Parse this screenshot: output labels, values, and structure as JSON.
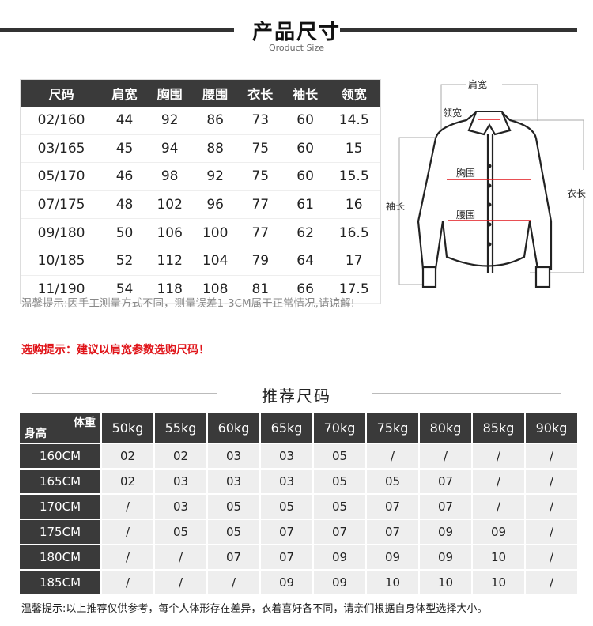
{
  "header": {
    "title": "产品尺寸",
    "subtitle": "Qroduct Size"
  },
  "size_table": {
    "columns": [
      "尺码",
      "肩宽",
      "胸围",
      "腰围",
      "衣长",
      "袖长",
      "领宽"
    ],
    "rows": [
      [
        "02/160",
        "44",
        "92",
        "86",
        "73",
        "60",
        "14.5"
      ],
      [
        "03/165",
        "45",
        "94",
        "88",
        "75",
        "60",
        "15"
      ],
      [
        "05/170",
        "46",
        "98",
        "92",
        "75",
        "60",
        "15.5"
      ],
      [
        "07/175",
        "48",
        "102",
        "96",
        "77",
        "61",
        "16"
      ],
      [
        "09/180",
        "50",
        "106",
        "100",
        "77",
        "62",
        "16.5"
      ],
      [
        "10/185",
        "52",
        "112",
        "104",
        "79",
        "64",
        "17"
      ],
      [
        "11/190",
        "54",
        "118",
        "108",
        "81",
        "66",
        "17.5"
      ]
    ]
  },
  "diagram": {
    "labels": {
      "shoulder": "肩宽",
      "collar": "领宽",
      "chest": "胸围",
      "waist": "腰围",
      "sleeve": "袖长",
      "length": "衣长"
    },
    "measure_color": "#e0151a"
  },
  "notes": {
    "measure_note": "温馨提示:因手工测量方式不同，测量误差1-3CM属于正常情况,请谅解!",
    "buy_note": "选购提示：建议以肩宽参数选购尺码！"
  },
  "recommend": {
    "title": "推荐尺码",
    "corner_weight": "体重",
    "corner_height": "身高",
    "weights": [
      "50kg",
      "55kg",
      "60kg",
      "65kg",
      "70kg",
      "75kg",
      "80kg",
      "85kg",
      "90kg"
    ],
    "rows": [
      {
        "height": "160CM",
        "sizes": [
          "02",
          "02",
          "03",
          "03",
          "05",
          "/",
          "/",
          "/",
          "/"
        ]
      },
      {
        "height": "165CM",
        "sizes": [
          "02",
          "03",
          "03",
          "03",
          "05",
          "05",
          "07",
          "/",
          "/"
        ]
      },
      {
        "height": "170CM",
        "sizes": [
          "/",
          "03",
          "05",
          "05",
          "05",
          "07",
          "07",
          "/",
          "/"
        ]
      },
      {
        "height": "175CM",
        "sizes": [
          "/",
          "05",
          "05",
          "07",
          "07",
          "07",
          "09",
          "09",
          "/"
        ]
      },
      {
        "height": "180CM",
        "sizes": [
          "/",
          "/",
          "07",
          "07",
          "09",
          "09",
          "09",
          "10",
          "/"
        ]
      },
      {
        "height": "185CM",
        "sizes": [
          "/",
          "/",
          "/",
          "09",
          "09",
          "10",
          "10",
          "10",
          "/"
        ]
      }
    ],
    "footer_note": "温馨提示:以上推荐仅供参考，每个人体形存在差异，衣着喜好各不同，请亲们根据自身体型选择大小。"
  }
}
